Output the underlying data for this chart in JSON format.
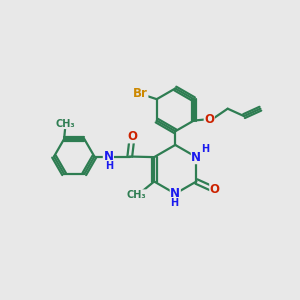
{
  "bg_color": "#e8e8e8",
  "bond_color": "#2e7d52",
  "bond_width": 1.6,
  "atom_colors": {
    "N": "#1a1aee",
    "O": "#cc2200",
    "Br": "#cc8800",
    "H": "#1a1aee",
    "C": "#2e7d52"
  },
  "font_size_label": 8.5,
  "font_size_small": 7.0
}
